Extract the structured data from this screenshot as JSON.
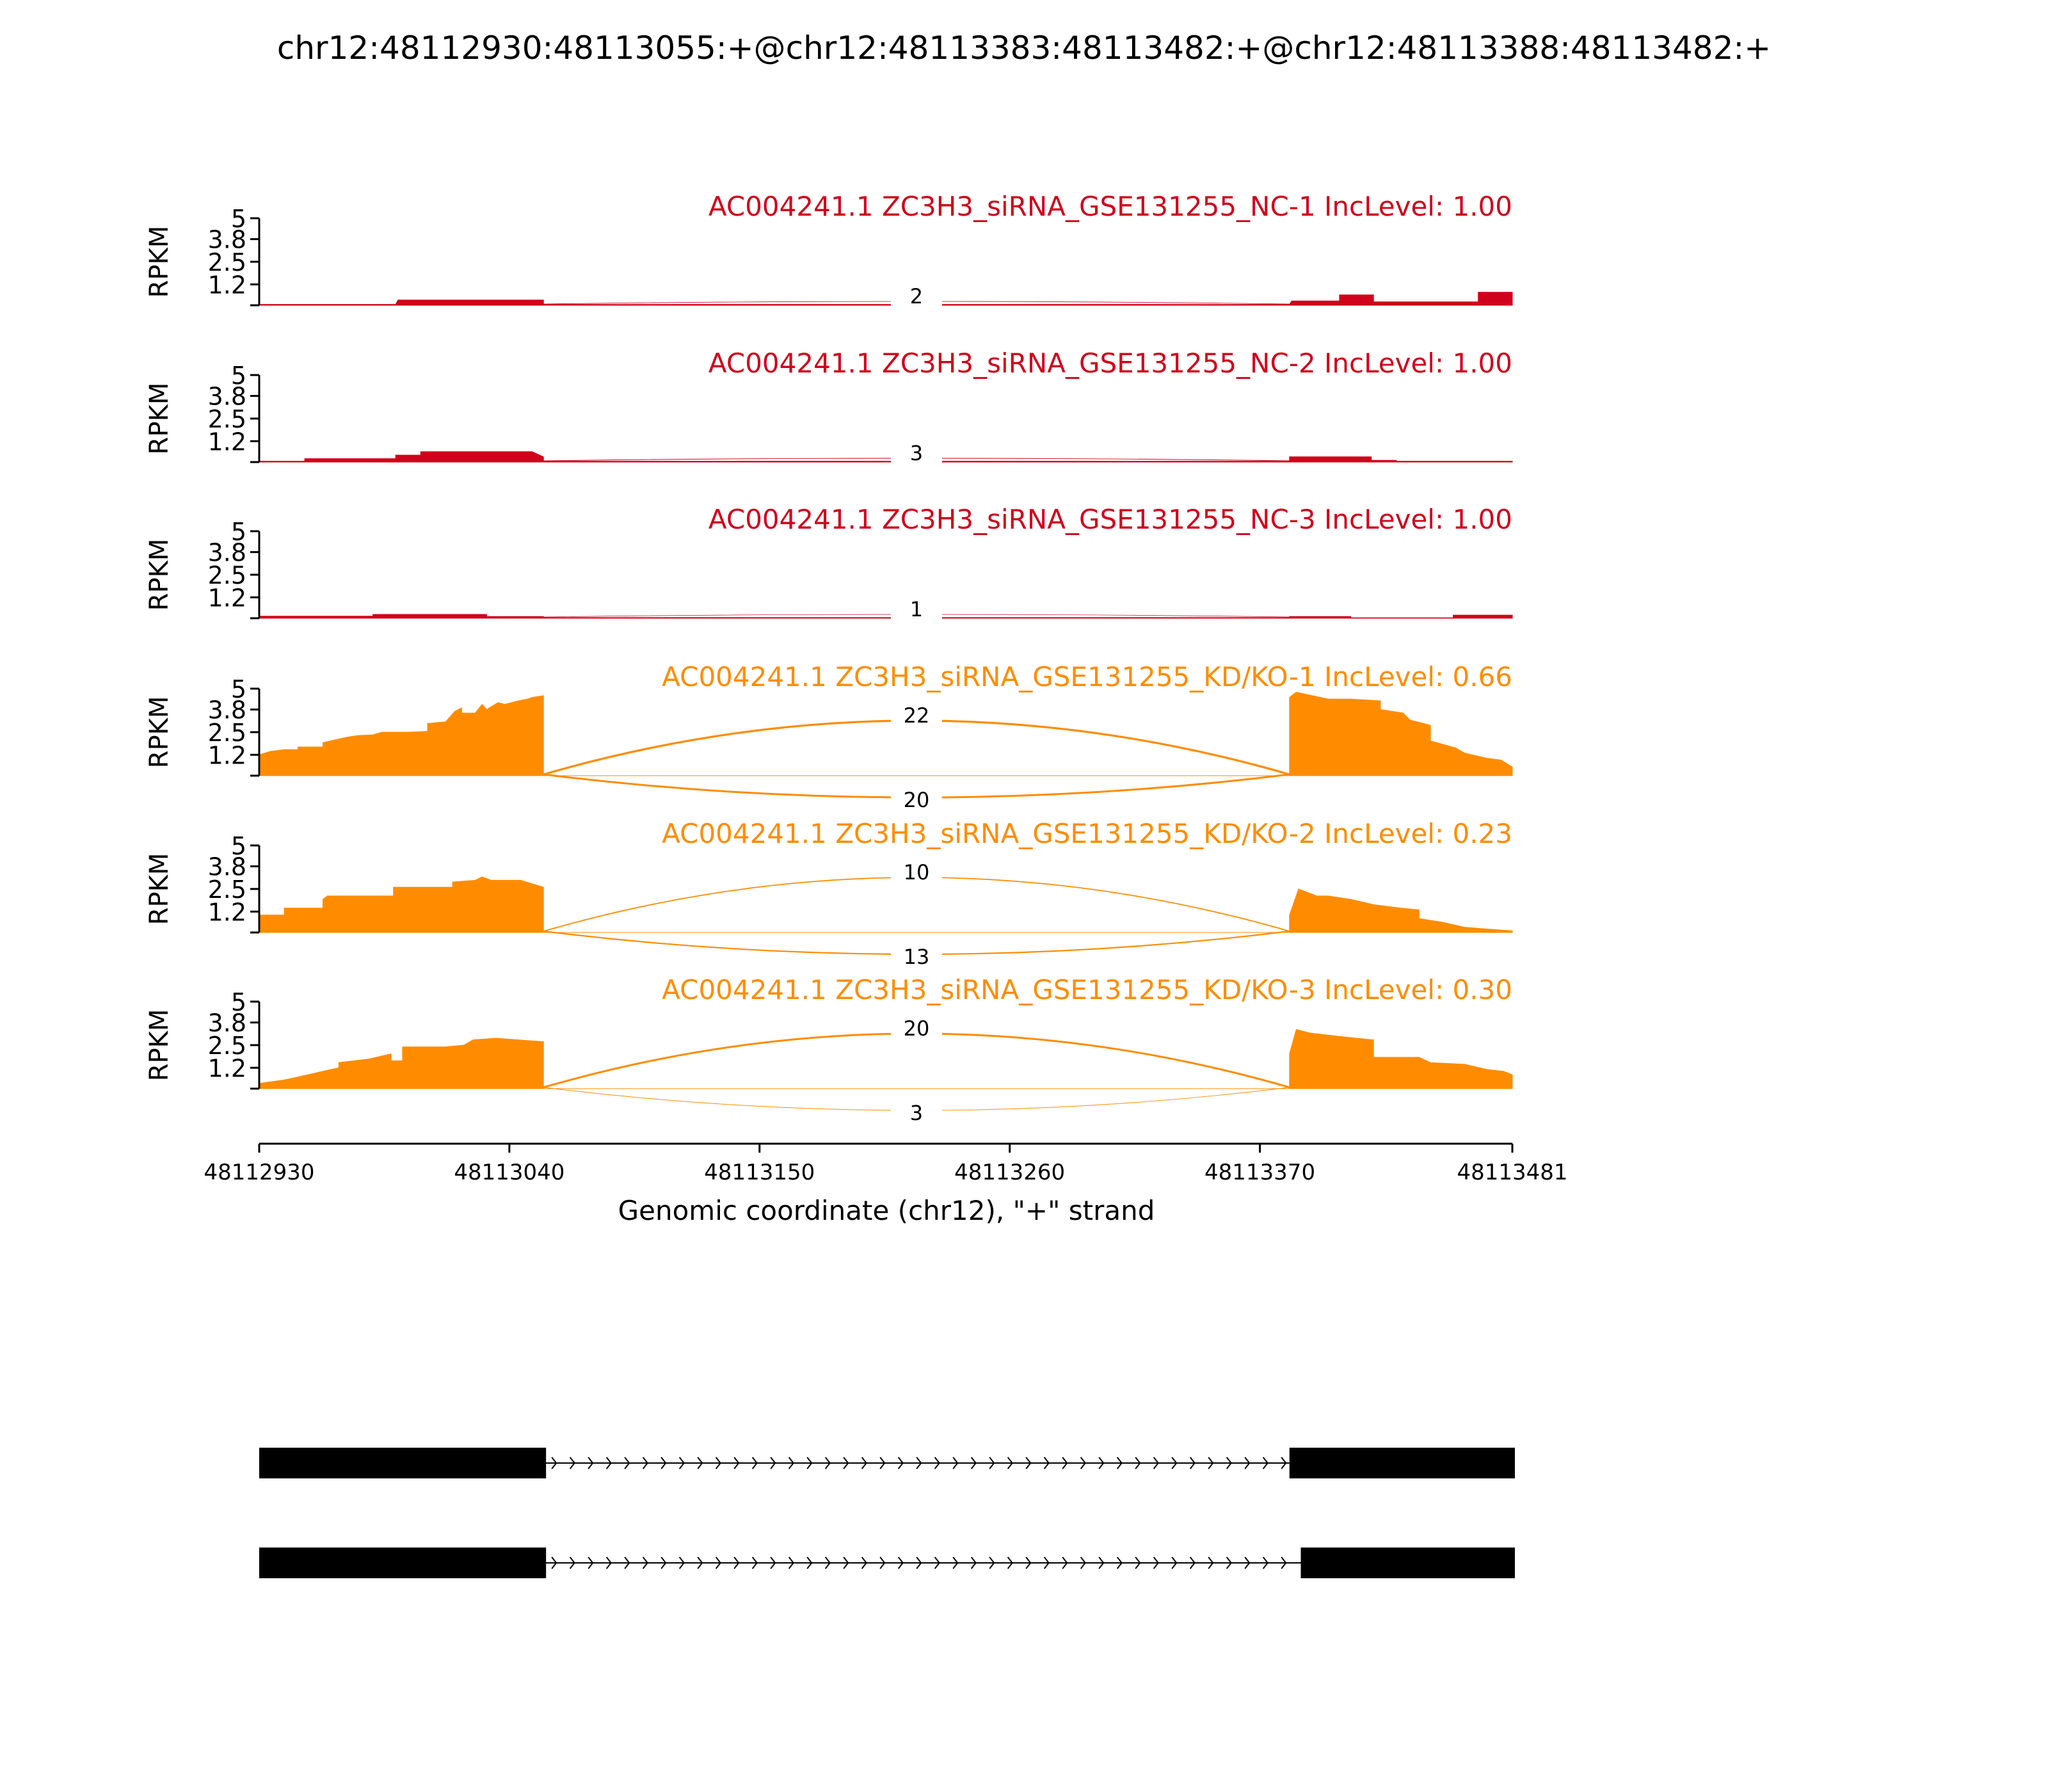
{
  "title": "chr12:48112930:48113055:+@chr12:48113383:48113482:+@chr12:48113388:48113482:+",
  "colors": {
    "control": "#d0021b",
    "knockdown": "#ff8c00",
    "axis": "#000000",
    "gene_model": "#000000"
  },
  "chart_data": {
    "type": "area",
    "xlabel": "Genomic coordinate (chr12), \"+\" strand",
    "xlim": [
      48112930,
      48113481
    ],
    "xticks": [
      48112930,
      48113040,
      48113150,
      48113260,
      48113370,
      48113481
    ],
    "xtick_labels": [
      "48112930",
      "48113040",
      "48113150",
      "48113260",
      "48113370",
      "48113481"
    ],
    "ylabel": "RPKM",
    "ylim": [
      0,
      5
    ],
    "yticks": [
      1.2,
      2.5,
      3.8,
      5
    ],
    "ytick_labels": [
      "1.2",
      "2.5",
      "3.8",
      "5"
    ],
    "upstream_exon": [
      48112930,
      48113055
    ],
    "downstream_exon_start": 48113383,
    "inclusion_exon_start": 48113388,
    "tracks": [
      {
        "label": "AC004241.1 ZC3H3_siRNA_GSE131255_NC-1 IncLevel: 1.00",
        "group": "control",
        "junctions": [
          {
            "count": "2",
            "side": "above"
          }
        ],
        "coverage": [
          [
            48112930,
            0.05
          ],
          [
            48112990,
            0.05
          ],
          [
            48112991,
            0.3
          ],
          [
            48113040,
            0.3
          ],
          [
            48113055,
            0.3
          ],
          [
            48113055,
            0.05
          ],
          [
            48113383,
            0.05
          ],
          [
            48113384,
            0.25
          ],
          [
            48113405,
            0.25
          ],
          [
            48113405,
            0.6
          ],
          [
            48113420,
            0.6
          ],
          [
            48113420,
            0.2
          ],
          [
            48113466,
            0.2
          ],
          [
            48113466,
            0.75
          ],
          [
            48113481,
            0.75
          ]
        ]
      },
      {
        "label": "AC004241.1 ZC3H3_siRNA_GSE131255_NC-2 IncLevel: 1.00",
        "group": "control",
        "junctions": [
          {
            "count": "3",
            "side": "above"
          }
        ],
        "coverage": [
          [
            48112930,
            0.05
          ],
          [
            48112950,
            0.05
          ],
          [
            48112950,
            0.2
          ],
          [
            48112990,
            0.2
          ],
          [
            48112990,
            0.4
          ],
          [
            48113001,
            0.4
          ],
          [
            48113001,
            0.6
          ],
          [
            48113050,
            0.6
          ],
          [
            48113055,
            0.3
          ],
          [
            48113055,
            0.05
          ],
          [
            48113383,
            0.05
          ],
          [
            48113383,
            0.3
          ],
          [
            48113419,
            0.3
          ],
          [
            48113419,
            0.1
          ],
          [
            48113430,
            0.1
          ],
          [
            48113430,
            0.05
          ],
          [
            48113481,
            0.05
          ]
        ]
      },
      {
        "label": "AC004241.1 ZC3H3_siRNA_GSE131255_NC-3 IncLevel: 1.00",
        "group": "control",
        "junctions": [
          {
            "count": "1",
            "side": "above"
          }
        ],
        "coverage": [
          [
            48112930,
            0.12
          ],
          [
            48112980,
            0.12
          ],
          [
            48112980,
            0.22
          ],
          [
            48113030,
            0.22
          ],
          [
            48113030,
            0.1
          ],
          [
            48113055,
            0.1
          ],
          [
            48113055,
            0.04
          ],
          [
            48113383,
            0.04
          ],
          [
            48113383,
            0.1
          ],
          [
            48113410,
            0.1
          ],
          [
            48113410,
            0.03
          ],
          [
            48113455,
            0.03
          ],
          [
            48113455,
            0.18
          ],
          [
            48113481,
            0.18
          ]
        ]
      },
      {
        "label": "AC004241.1 ZC3H3_siRNA_GSE131255_KD/KO-1 IncLevel: 0.66",
        "group": "knockdown",
        "junctions": [
          {
            "count": "22",
            "side": "above"
          },
          {
            "count": "20",
            "side": "below"
          }
        ],
        "coverage": [
          [
            48112930,
            1.2
          ],
          [
            48112935,
            1.4
          ],
          [
            48112941,
            1.5
          ],
          [
            48112947,
            1.5
          ],
          [
            48112947,
            1.65
          ],
          [
            48112958,
            1.65
          ],
          [
            48112958,
            1.9
          ],
          [
            48112968,
            2.2
          ],
          [
            48112973,
            2.3
          ],
          [
            48112980,
            2.35
          ],
          [
            48112984,
            2.5
          ],
          [
            48112996,
            2.5
          ],
          [
            48113004,
            2.55
          ],
          [
            48113004,
            3.0
          ],
          [
            48113012,
            3.1
          ],
          [
            48113016,
            3.7
          ],
          [
            48113019,
            3.9
          ],
          [
            48113019,
            3.6
          ],
          [
            48113025,
            3.6
          ],
          [
            48113028,
            4.1
          ],
          [
            48113030,
            3.8
          ],
          [
            48113035,
            4.2
          ],
          [
            48113038,
            4.1
          ],
          [
            48113044,
            4.3
          ],
          [
            48113048,
            4.4
          ],
          [
            48113050,
            4.5
          ],
          [
            48113055,
            4.6
          ],
          [
            48113055,
            0
          ],
          [
            48113383,
            0
          ],
          [
            48113383,
            4.5
          ],
          [
            48113386,
            4.8
          ],
          [
            48113393,
            4.6
          ],
          [
            48113400,
            4.4
          ],
          [
            48113410,
            4.4
          ],
          [
            48113423,
            4.3
          ],
          [
            48113423,
            3.8
          ],
          [
            48113433,
            3.6
          ],
          [
            48113436,
            3.2
          ],
          [
            48113445,
            2.9
          ],
          [
            48113445,
            2.0
          ],
          [
            48113456,
            1.6
          ],
          [
            48113460,
            1.3
          ],
          [
            48113470,
            1.0
          ],
          [
            48113476,
            0.9
          ],
          [
            48113481,
            0.5
          ]
        ]
      },
      {
        "label": "AC004241.1 ZC3H3_siRNA_GSE131255_KD/KO-2 IncLevel: 0.23",
        "group": "knockdown",
        "junctions": [
          {
            "count": "10",
            "side": "above"
          },
          {
            "count": "13",
            "side": "below"
          }
        ],
        "coverage": [
          [
            48112930,
            1.0
          ],
          [
            48112941,
            1.0
          ],
          [
            48112941,
            1.4
          ],
          [
            48112958,
            1.4
          ],
          [
            48112958,
            1.9
          ],
          [
            48112960,
            2.1
          ],
          [
            48112989,
            2.1
          ],
          [
            48112989,
            2.6
          ],
          [
            48113015,
            2.6
          ],
          [
            48113015,
            2.9
          ],
          [
            48113025,
            3.0
          ],
          [
            48113028,
            3.2
          ],
          [
            48113032,
            3.0
          ],
          [
            48113045,
            3.0
          ],
          [
            48113055,
            2.6
          ],
          [
            48113055,
            0
          ],
          [
            48113383,
            0
          ],
          [
            48113383,
            1.0
          ],
          [
            48113387,
            2.5
          ],
          [
            48113395,
            2.1
          ],
          [
            48113400,
            2.1
          ],
          [
            48113410,
            1.9
          ],
          [
            48113420,
            1.6
          ],
          [
            48113432,
            1.4
          ],
          [
            48113440,
            1.3
          ],
          [
            48113440,
            0.8
          ],
          [
            48113450,
            0.6
          ],
          [
            48113460,
            0.3
          ],
          [
            48113470,
            0.2
          ],
          [
            48113481,
            0.1
          ]
        ]
      },
      {
        "label": "AC004241.1 ZC3H3_siRNA_GSE131255_KD/KO-3 IncLevel: 0.30",
        "group": "knockdown",
        "junctions": [
          {
            "count": "20",
            "side": "above"
          },
          {
            "count": "3",
            "side": "below"
          }
        ],
        "coverage": [
          [
            48112930,
            0.3
          ],
          [
            48112941,
            0.5
          ],
          [
            48112948,
            0.7
          ],
          [
            48112958,
            1.0
          ],
          [
            48112965,
            1.2
          ],
          [
            48112965,
            1.5
          ],
          [
            48112978,
            1.7
          ],
          [
            48112988,
            2.0
          ],
          [
            48112988,
            1.6
          ],
          [
            48112993,
            1.6
          ],
          [
            48112993,
            2.4
          ],
          [
            48113012,
            2.4
          ],
          [
            48113020,
            2.5
          ],
          [
            48113024,
            2.8
          ],
          [
            48113034,
            2.9
          ],
          [
            48113044,
            2.8
          ],
          [
            48113055,
            2.7
          ],
          [
            48113055,
            0
          ],
          [
            48113383,
            0
          ],
          [
            48113383,
            2.0
          ],
          [
            48113386,
            3.4
          ],
          [
            48113392,
            3.2
          ],
          [
            48113405,
            3.0
          ],
          [
            48113420,
            2.8
          ],
          [
            48113420,
            1.8
          ],
          [
            48113440,
            1.8
          ],
          [
            48113445,
            1.5
          ],
          [
            48113460,
            1.4
          ],
          [
            48113470,
            1.1
          ],
          [
            48113477,
            1.0
          ],
          [
            48113481,
            0.8
          ]
        ]
      }
    ],
    "isoforms": [
      {
        "exons": [
          [
            48112930,
            48113055
          ],
          [
            48113383,
            48113481
          ]
        ]
      },
      {
        "exons": [
          [
            48112930,
            48113055
          ],
          [
            48113388,
            48113481
          ]
        ]
      }
    ]
  }
}
